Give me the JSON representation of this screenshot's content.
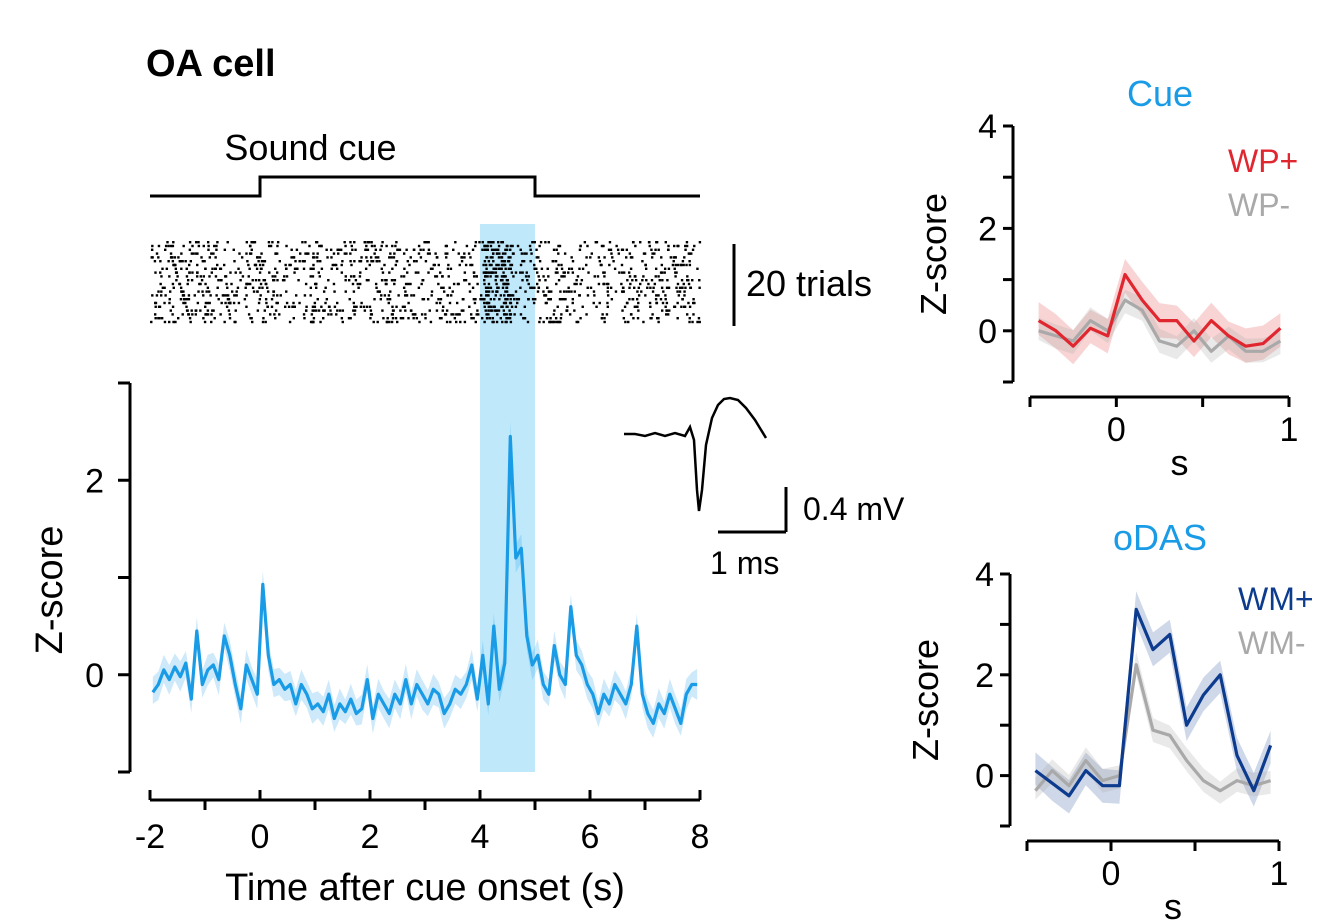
{
  "colors": {
    "main": "#1a9be6",
    "cue_band": "#bfe9fb",
    "wp_plus": "#e0262f",
    "grey": "#a9a9a9",
    "wm_plus": "#0d3c8f",
    "spike": "#000000"
  },
  "page": {
    "title": "OA cell"
  },
  "chart_data": [
    {
      "id": "main",
      "type": "line",
      "xlabel": "Time after cue onset (s)",
      "ylabel": "Z-score",
      "xlim": [
        -2,
        8
      ],
      "ylim": [
        -1,
        3
      ],
      "x_ticks": [
        -2,
        0,
        2,
        4,
        6,
        8
      ],
      "x_tick_labels": [
        "-2",
        "0",
        "2",
        "4",
        "6",
        "8"
      ],
      "y_ticks": [
        0,
        2
      ],
      "y_tick_labels": [
        "0",
        "2"
      ],
      "cue_period": [
        4,
        5
      ],
      "stimulus_label": "Sound cue",
      "stimulus_window": [
        0,
        5
      ],
      "raster_scale_label": "20 trials",
      "series": [
        {
          "x": [
            -1.95,
            -1.85,
            -1.75,
            -1.65,
            -1.55,
            -1.45,
            -1.35,
            -1.25,
            -1.15,
            -1.05,
            -0.95,
            -0.85,
            -0.75,
            -0.65,
            -0.55,
            -0.45,
            -0.35,
            -0.25,
            -0.15,
            -0.05,
            0.05,
            0.15,
            0.25,
            0.35,
            0.45,
            0.55,
            0.65,
            0.75,
            0.85,
            0.95,
            1.05,
            1.15,
            1.25,
            1.35,
            1.45,
            1.55,
            1.65,
            1.75,
            1.85,
            1.95,
            2.05,
            2.15,
            2.25,
            2.35,
            2.45,
            2.55,
            2.65,
            2.75,
            2.85,
            2.95,
            3.05,
            3.15,
            3.25,
            3.35,
            3.45,
            3.55,
            3.65,
            3.75,
            3.85,
            3.95,
            4.05,
            4.15,
            4.25,
            4.35,
            4.45,
            4.55,
            4.65,
            4.75,
            4.85,
            4.95,
            5.05,
            5.15,
            5.25,
            5.35,
            5.45,
            5.55,
            5.65,
            5.75,
            5.85,
            5.95,
            6.05,
            6.15,
            6.25,
            6.35,
            6.45,
            6.55,
            6.65,
            6.75,
            6.85,
            6.95,
            7.05,
            7.15,
            7.25,
            7.35,
            7.45,
            7.55,
            7.65,
            7.75,
            7.85,
            7.95
          ],
          "values": [
            -0.18,
            -0.1,
            0.05,
            -0.05,
            0.08,
            -0.02,
            0.12,
            -0.25,
            0.45,
            -0.1,
            0.05,
            0.1,
            -0.05,
            0.4,
            0.2,
            -0.1,
            -0.35,
            0.1,
            -0.05,
            -0.2,
            0.93,
            0.2,
            -0.1,
            -0.05,
            -0.15,
            -0.1,
            -0.3,
            -0.1,
            -0.2,
            -0.35,
            -0.3,
            -0.38,
            -0.2,
            -0.45,
            -0.3,
            -0.38,
            -0.25,
            -0.4,
            -0.35,
            -0.05,
            -0.45,
            -0.2,
            -0.3,
            -0.4,
            -0.2,
            -0.3,
            -0.05,
            -0.3,
            -0.1,
            -0.2,
            -0.3,
            -0.15,
            -0.2,
            -0.4,
            -0.3,
            -0.15,
            -0.2,
            -0.1,
            0.1,
            -0.25,
            0.2,
            -0.3,
            0.5,
            -0.15,
            0.12,
            2.45,
            1.2,
            1.3,
            0.4,
            0.1,
            0.2,
            -0.1,
            -0.2,
            0.3,
            0.0,
            -0.1,
            0.7,
            0.2,
            0.1,
            -0.1,
            -0.2,
            -0.4,
            -0.2,
            -0.3,
            -0.1,
            -0.2,
            -0.3,
            -0.1,
            0.5,
            -0.2,
            -0.4,
            -0.5,
            -0.3,
            -0.4,
            -0.2,
            -0.35,
            -0.5,
            -0.2,
            -0.1,
            -0.1
          ]
        }
      ]
    },
    {
      "id": "cue",
      "type": "line",
      "title": "Cue",
      "xlabel": "s",
      "ylabel": "Z-score",
      "xlim": [
        -0.5,
        1
      ],
      "ylim": [
        -1,
        4
      ],
      "x_ticks": [
        0,
        1
      ],
      "x_tick_labels": [
        "0",
        "1"
      ],
      "y_ticks": [
        0,
        2,
        4
      ],
      "y_tick_labels": [
        "0",
        "2",
        "4"
      ],
      "series": [
        {
          "name": "WP+",
          "color": "wp_plus",
          "x": [
            -0.45,
            -0.35,
            -0.25,
            -0.15,
            -0.05,
            0.05,
            0.15,
            0.25,
            0.35,
            0.45,
            0.55,
            0.65,
            0.75,
            0.85,
            0.95
          ],
          "values": [
            0.2,
            0.0,
            -0.3,
            0.05,
            -0.1,
            1.1,
            0.6,
            0.2,
            0.2,
            -0.2,
            0.2,
            -0.1,
            -0.3,
            -0.25,
            0.05
          ]
        },
        {
          "name": "WP-",
          "color": "grey",
          "x": [
            -0.45,
            -0.35,
            -0.25,
            -0.15,
            -0.05,
            0.05,
            0.15,
            0.25,
            0.35,
            0.45,
            0.55,
            0.65,
            0.75,
            0.85,
            0.95
          ],
          "values": [
            0.0,
            -0.1,
            -0.2,
            0.2,
            0.0,
            0.6,
            0.4,
            -0.2,
            -0.3,
            0.0,
            -0.4,
            -0.1,
            -0.4,
            -0.4,
            -0.2
          ]
        }
      ]
    },
    {
      "id": "odas",
      "type": "line",
      "title": "oDAS",
      "xlabel": "s",
      "ylabel": "Z-score",
      "xlim": [
        -0.5,
        1
      ],
      "ylim": [
        -1,
        4
      ],
      "x_ticks": [
        0,
        1
      ],
      "x_tick_labels": [
        "0",
        "1"
      ],
      "y_ticks": [
        0,
        2,
        4
      ],
      "y_tick_labels": [
        "0",
        "2",
        "4"
      ],
      "series": [
        {
          "name": "WM+",
          "color": "wm_plus",
          "x": [
            -0.45,
            -0.35,
            -0.25,
            -0.15,
            -0.05,
            0.05,
            0.15,
            0.25,
            0.35,
            0.45,
            0.55,
            0.65,
            0.75,
            0.85,
            0.95
          ],
          "values": [
            0.1,
            -0.15,
            -0.4,
            0.1,
            -0.2,
            -0.2,
            3.3,
            2.5,
            2.8,
            1.0,
            1.6,
            2.0,
            0.4,
            -0.3,
            0.6
          ]
        },
        {
          "name": "WM-",
          "color": "grey",
          "x": [
            -0.45,
            -0.35,
            -0.25,
            -0.15,
            -0.05,
            0.05,
            0.15,
            0.25,
            0.35,
            0.45,
            0.55,
            0.65,
            0.75,
            0.85,
            0.95
          ],
          "values": [
            -0.3,
            0.1,
            -0.2,
            0.3,
            -0.1,
            0.0,
            2.2,
            0.9,
            0.8,
            0.3,
            -0.1,
            -0.3,
            -0.1,
            -0.2,
            -0.1
          ]
        }
      ]
    }
  ],
  "waveform": {
    "time_scale_label": "1 ms",
    "voltage_scale_label": "0.4 mV"
  }
}
